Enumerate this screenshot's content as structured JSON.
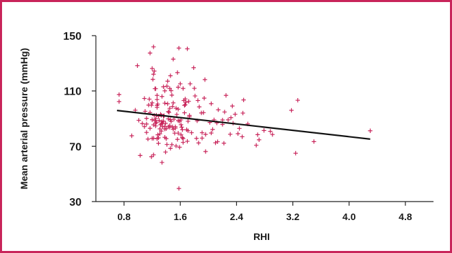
{
  "chart_data": {
    "type": "scatter",
    "xlabel": "RHI",
    "ylabel": "Mean arterial pressure (mmHg)",
    "x_ticks": [
      0.8,
      1.6,
      2.4,
      3.2,
      4.0,
      4.8
    ],
    "x_tick_labels": [
      "0.8",
      "1.6",
      "2.4",
      "3.2",
      "4.0",
      "4.8"
    ],
    "y_ticks": [
      30,
      70,
      110,
      150
    ],
    "y_tick_labels": [
      "30",
      "70",
      "110",
      "150"
    ],
    "xlim": [
      0.4,
      5.2
    ],
    "ylim": [
      30,
      150
    ],
    "grid": false,
    "marker": "+",
    "colors": {
      "points": "#c8245a",
      "frame": "#c8245a",
      "trend": "#111111"
    },
    "trend_line": {
      "x": [
        0.7,
        4.3
      ],
      "y": [
        95.9,
        75.2
      ]
    },
    "points": [
      [
        0.73,
        107.4
      ],
      [
        0.73,
        102.3
      ],
      [
        0.91,
        77.6
      ],
      [
        0.96,
        96.1
      ],
      [
        0.99,
        128.3
      ],
      [
        1.01,
        88.8
      ],
      [
        1.03,
        63.4
      ],
      [
        1.06,
        86.4
      ],
      [
        1.09,
        84.2
      ],
      [
        1.09,
        104.6
      ],
      [
        1.1,
        95.3
      ],
      [
        1.12,
        80.0
      ],
      [
        1.12,
        90.2
      ],
      [
        1.12,
        86.1
      ],
      [
        1.14,
        75.2
      ],
      [
        1.15,
        99.8
      ],
      [
        1.16,
        104.1
      ],
      [
        1.17,
        137.4
      ],
      [
        1.17,
        83.0
      ],
      [
        1.17,
        94.4
      ],
      [
        1.19,
        99.7
      ],
      [
        1.19,
        62.4
      ],
      [
        1.2,
        126.3
      ],
      [
        1.2,
        89.2
      ],
      [
        1.2,
        75.7
      ],
      [
        1.2,
        101.4
      ],
      [
        1.21,
        118.4
      ],
      [
        1.22,
        63.8
      ],
      [
        1.22,
        141.9
      ],
      [
        1.22,
        75.8
      ],
      [
        1.22,
        85.5
      ],
      [
        1.22,
        122.1
      ],
      [
        1.23,
        124.4
      ],
      [
        1.23,
        92.3
      ],
      [
        1.24,
        88.5
      ],
      [
        1.24,
        111.6
      ],
      [
        1.25,
        86.5
      ],
      [
        1.25,
        84.7
      ],
      [
        1.25,
        90.0
      ],
      [
        1.25,
        111.6
      ],
      [
        1.26,
        87.4
      ],
      [
        1.26,
        92.5
      ],
      [
        1.27,
        98.1
      ],
      [
        1.27,
        106.8
      ],
      [
        1.27,
        103.8
      ],
      [
        1.27,
        99.5
      ],
      [
        1.27,
        75.4
      ],
      [
        1.28,
        78.3
      ],
      [
        1.28,
        100.5
      ],
      [
        1.29,
        76.1
      ],
      [
        1.29,
        91.7
      ],
      [
        1.29,
        72.1
      ],
      [
        1.3,
        88.7
      ],
      [
        1.31,
        82.6
      ],
      [
        1.31,
        79.0
      ],
      [
        1.32,
        85.5
      ],
      [
        1.32,
        93.1
      ],
      [
        1.33,
        81.0
      ],
      [
        1.33,
        92.3
      ],
      [
        1.33,
        86.2
      ],
      [
        1.34,
        87.8
      ],
      [
        1.34,
        58.3
      ],
      [
        1.34,
        106.0
      ],
      [
        1.35,
        84.1
      ],
      [
        1.35,
        86.7
      ],
      [
        1.36,
        88.2
      ],
      [
        1.36,
        91.8
      ],
      [
        1.36,
        113.0
      ],
      [
        1.37,
        92.1
      ],
      [
        1.38,
        101.2
      ],
      [
        1.38,
        82.5
      ],
      [
        1.38,
        110.1
      ],
      [
        1.38,
        84.4
      ],
      [
        1.38,
        76.5
      ],
      [
        1.39,
        86.6
      ],
      [
        1.39,
        65.8
      ],
      [
        1.4,
        75.5
      ],
      [
        1.4,
        82.7
      ],
      [
        1.41,
        113.5
      ],
      [
        1.41,
        71.3
      ],
      [
        1.42,
        100.7
      ],
      [
        1.42,
        117.1
      ],
      [
        1.43,
        84.1
      ],
      [
        1.43,
        89.8
      ],
      [
        1.43,
        95.1
      ],
      [
        1.44,
        94.5
      ],
      [
        1.45,
        111.8
      ],
      [
        1.45,
        97.4
      ],
      [
        1.45,
        85.0
      ],
      [
        1.45,
        83.7
      ],
      [
        1.46,
        121.0
      ],
      [
        1.46,
        89.2
      ],
      [
        1.46,
        68.5
      ],
      [
        1.47,
        88.0
      ],
      [
        1.47,
        110.2
      ],
      [
        1.48,
        107.0
      ],
      [
        1.48,
        71.2
      ],
      [
        1.49,
        84.1
      ],
      [
        1.49,
        98.7
      ],
      [
        1.5,
        82.3
      ],
      [
        1.5,
        133.0
      ],
      [
        1.5,
        101.4
      ],
      [
        1.51,
        89.6
      ],
      [
        1.52,
        79.5
      ],
      [
        1.53,
        83.1
      ],
      [
        1.53,
        84.1
      ],
      [
        1.54,
        97.5
      ],
      [
        1.54,
        70.2
      ],
      [
        1.55,
        93.0
      ],
      [
        1.56,
        123.3
      ],
      [
        1.56,
        75.0
      ],
      [
        1.57,
        112.7
      ],
      [
        1.57,
        88.5
      ],
      [
        1.57,
        96.8
      ],
      [
        1.57,
        79.5
      ],
      [
        1.58,
        141.0
      ],
      [
        1.58,
        39.5
      ],
      [
        1.59,
        69.3
      ],
      [
        1.59,
        88.1
      ],
      [
        1.6,
        115.2
      ],
      [
        1.61,
        78.3
      ],
      [
        1.61,
        85.6
      ],
      [
        1.61,
        89.1
      ],
      [
        1.62,
        83.8
      ],
      [
        1.63,
        82.0
      ],
      [
        1.63,
        76.3
      ],
      [
        1.64,
        75.5
      ],
      [
        1.64,
        111.8
      ],
      [
        1.64,
        72.8
      ],
      [
        1.65,
        103.1
      ],
      [
        1.66,
        94.2
      ],
      [
        1.66,
        99.6
      ],
      [
        1.67,
        104.2
      ],
      [
        1.67,
        100.0
      ],
      [
        1.68,
        101.8
      ],
      [
        1.69,
        82.0
      ],
      [
        1.7,
        73.6
      ],
      [
        1.7,
        140.5
      ],
      [
        1.71,
        81.2
      ],
      [
        1.71,
        88.1
      ],
      [
        1.72,
        102.5
      ],
      [
        1.73,
        92.3
      ],
      [
        1.73,
        91.3
      ],
      [
        1.74,
        115.2
      ],
      [
        1.76,
        79.8
      ],
      [
        1.79,
        126.8
      ],
      [
        1.8,
        111.9
      ],
      [
        1.81,
        106.4
      ],
      [
        1.83,
        75.7
      ],
      [
        1.84,
        88.4
      ],
      [
        1.85,
        103.1
      ],
      [
        1.86,
        72.4
      ],
      [
        1.87,
        98.5
      ],
      [
        1.9,
        94.1
      ],
      [
        1.91,
        75.9
      ],
      [
        1.91,
        79.8
      ],
      [
        1.93,
        94.3
      ],
      [
        1.94,
        104.8
      ],
      [
        1.95,
        118.2
      ],
      [
        1.96,
        66.2
      ],
      [
        1.96,
        78.6
      ],
      [
        2.02,
        87.2
      ],
      [
        2.04,
        79.6
      ],
      [
        2.04,
        100.8
      ],
      [
        2.06,
        82.2
      ],
      [
        2.08,
        89.1
      ],
      [
        2.1,
        72.5
      ],
      [
        2.12,
        86.9
      ],
      [
        2.13,
        73.3
      ],
      [
        2.14,
        96.4
      ],
      [
        2.2,
        85.8
      ],
      [
        2.2,
        89.0
      ],
      [
        2.22,
        72.2
      ],
      [
        2.23,
        94.8
      ],
      [
        2.25,
        106.8
      ],
      [
        2.28,
        89.1
      ],
      [
        2.31,
        78.7
      ],
      [
        2.32,
        90.7
      ],
      [
        2.34,
        99.1
      ],
      [
        2.35,
        86.7
      ],
      [
        2.38,
        93.2
      ],
      [
        2.42,
        79.1
      ],
      [
        2.44,
        82.9
      ],
      [
        2.48,
        76.9
      ],
      [
        2.49,
        94.0
      ],
      [
        2.5,
        103.5
      ],
      [
        2.56,
        86.2
      ],
      [
        2.68,
        70.7
      ],
      [
        2.7,
        78.4
      ],
      [
        2.72,
        74.7
      ],
      [
        2.79,
        81.4
      ],
      [
        2.88,
        80.8
      ],
      [
        2.91,
        78.5
      ],
      [
        3.18,
        96.0
      ],
      [
        3.27,
        103.3
      ],
      [
        3.24,
        65.0
      ],
      [
        3.5,
        73.4
      ],
      [
        4.3,
        81.2
      ]
    ]
  }
}
